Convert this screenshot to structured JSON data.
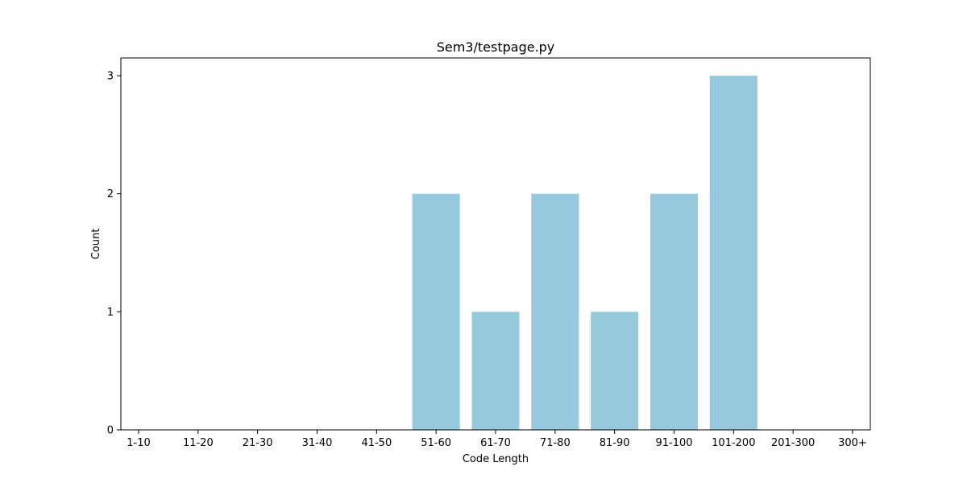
{
  "chart_data": {
    "type": "bar",
    "title": "Sem3/testpage.py",
    "xlabel": "Code Length",
    "ylabel": "Count",
    "categories": [
      "1-10",
      "11-20",
      "21-30",
      "31-40",
      "41-50",
      "51-60",
      "61-70",
      "71-80",
      "81-90",
      "91-100",
      "101-200",
      "201-300",
      "300+"
    ],
    "values": [
      0,
      0,
      0,
      0,
      0,
      2,
      1,
      2,
      1,
      2,
      3,
      0,
      0
    ],
    "y_ticks": [
      0,
      1,
      2,
      3
    ],
    "ylim": [
      0,
      3.15
    ],
    "grid": false,
    "legend": "none",
    "colors": {
      "bar": "#96c9dd",
      "axis": "#000000"
    }
  }
}
